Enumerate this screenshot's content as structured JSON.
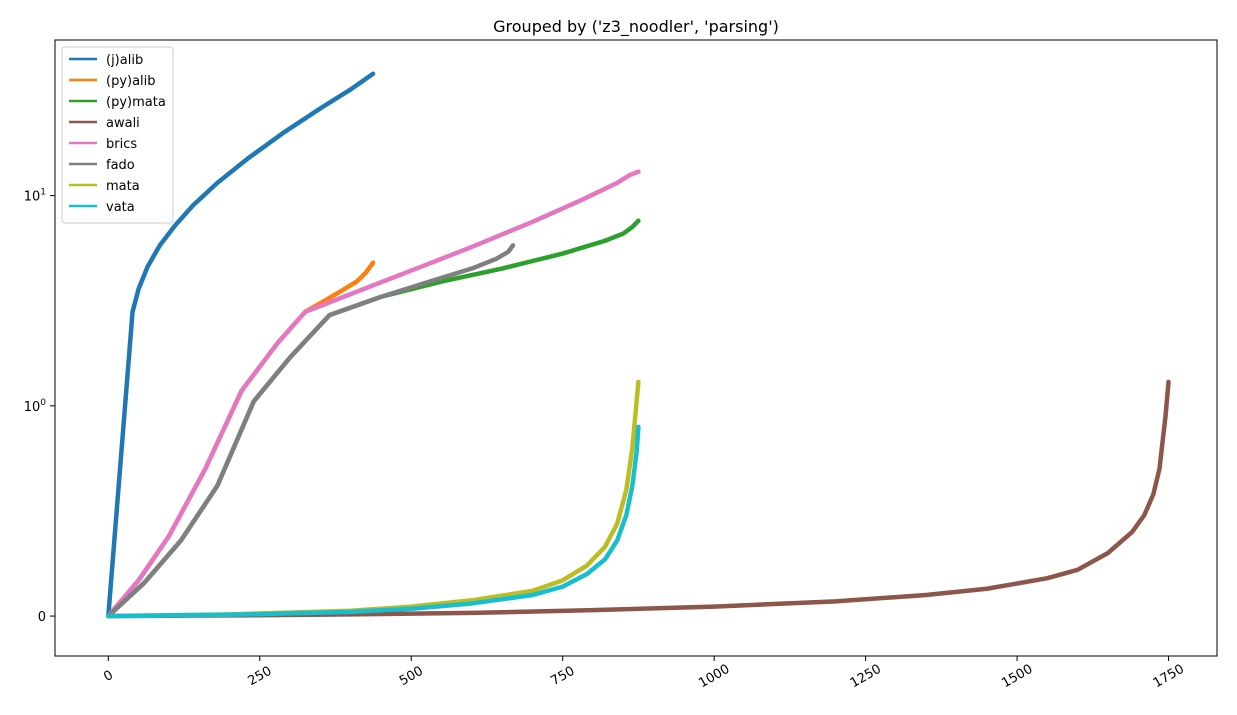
{
  "chart_data": {
    "type": "line",
    "title": "Grouped by ('z3_noodler', 'parsing')",
    "xlabel": "",
    "ylabel": "",
    "xlim": [
      -88,
      1830
    ],
    "yscale": "symlog",
    "symlog_linthresh": 1,
    "ylim": [
      -0.19,
      55
    ],
    "x_ticks": [
      {
        "value": 0,
        "label": "0"
      },
      {
        "value": 250,
        "label": "250"
      },
      {
        "value": 500,
        "label": "500"
      },
      {
        "value": 750,
        "label": "750"
      },
      {
        "value": 1000,
        "label": "1000"
      },
      {
        "value": 1250,
        "label": "1250"
      },
      {
        "value": 1500,
        "label": "1500"
      },
      {
        "value": 1750,
        "label": "1750"
      }
    ],
    "y_ticks": [
      {
        "value": 0,
        "label": "0"
      },
      {
        "value": 1,
        "label": "10",
        "exponent": "0"
      },
      {
        "value": 10,
        "label": "10",
        "exponent": "1"
      }
    ],
    "grid": false,
    "legend_position": "top-left",
    "series": [
      {
        "name": "(j)alib",
        "color": "#1f77b4",
        "x": [
          0,
          40,
          50,
          65,
          85,
          110,
          140,
          180,
          230,
          290,
          350,
          400,
          437
        ],
        "y": [
          0,
          2.8,
          3.6,
          4.6,
          5.8,
          7.2,
          9.0,
          11.5,
          15.0,
          20.0,
          26.0,
          32.0,
          38.0
        ]
      },
      {
        "name": "(py)alib",
        "color": "#ff7f0e",
        "x": [
          0,
          50,
          100,
          160,
          220,
          280,
          325,
          360,
          390,
          410,
          425,
          437
        ],
        "y": [
          0,
          0.17,
          0.38,
          0.7,
          1.18,
          2.0,
          2.8,
          3.2,
          3.6,
          3.9,
          4.3,
          4.8
        ]
      },
      {
        "name": "(py)mata",
        "color": "#2ca02c",
        "x": [
          0,
          60,
          120,
          180,
          240,
          300,
          365,
          450,
          550,
          650,
          750,
          820,
          850,
          865,
          875
        ],
        "y": [
          0,
          0.16,
          0.36,
          0.62,
          1.05,
          1.7,
          2.7,
          3.3,
          3.9,
          4.5,
          5.3,
          6.1,
          6.6,
          7.1,
          7.6
        ]
      },
      {
        "name": "awali",
        "color": "#8c564b",
        "x": [
          0,
          200,
          400,
          600,
          800,
          1000,
          1200,
          1350,
          1450,
          1550,
          1600,
          1650,
          1690,
          1710,
          1725,
          1735,
          1745,
          1750
        ],
        "y": [
          0,
          0.003,
          0.008,
          0.015,
          0.028,
          0.045,
          0.07,
          0.1,
          0.13,
          0.18,
          0.22,
          0.3,
          0.4,
          0.48,
          0.58,
          0.7,
          0.95,
          1.3
        ]
      },
      {
        "name": "brics",
        "color": "#e377c2",
        "x": [
          0,
          50,
          100,
          160,
          220,
          280,
          325,
          400,
          500,
          600,
          700,
          780,
          840,
          860,
          875
        ],
        "y": [
          0,
          0.17,
          0.38,
          0.7,
          1.18,
          2.0,
          2.8,
          3.4,
          4.4,
          5.7,
          7.5,
          9.5,
          11.5,
          12.5,
          13.0
        ]
      },
      {
        "name": "fado",
        "color": "#7f7f7f",
        "x": [
          0,
          60,
          120,
          180,
          240,
          300,
          365,
          450,
          530,
          600,
          640,
          660,
          668
        ],
        "y": [
          0,
          0.16,
          0.36,
          0.62,
          1.05,
          1.7,
          2.7,
          3.3,
          3.9,
          4.5,
          5.0,
          5.4,
          5.8
        ]
      },
      {
        "name": "mata",
        "color": "#bcbd22",
        "x": [
          0,
          200,
          400,
          500,
          600,
          700,
          750,
          790,
          820,
          840,
          855,
          865,
          872,
          875
        ],
        "y": [
          0,
          0.008,
          0.025,
          0.045,
          0.075,
          0.12,
          0.17,
          0.24,
          0.33,
          0.44,
          0.6,
          0.8,
          1.05,
          1.3
        ]
      },
      {
        "name": "vata",
        "color": "#17becf",
        "x": [
          0,
          200,
          400,
          500,
          600,
          700,
          750,
          790,
          820,
          840,
          855,
          865,
          872,
          875
        ],
        "y": [
          0,
          0.006,
          0.02,
          0.035,
          0.06,
          0.1,
          0.14,
          0.2,
          0.27,
          0.36,
          0.48,
          0.62,
          0.78,
          0.9
        ]
      }
    ]
  }
}
